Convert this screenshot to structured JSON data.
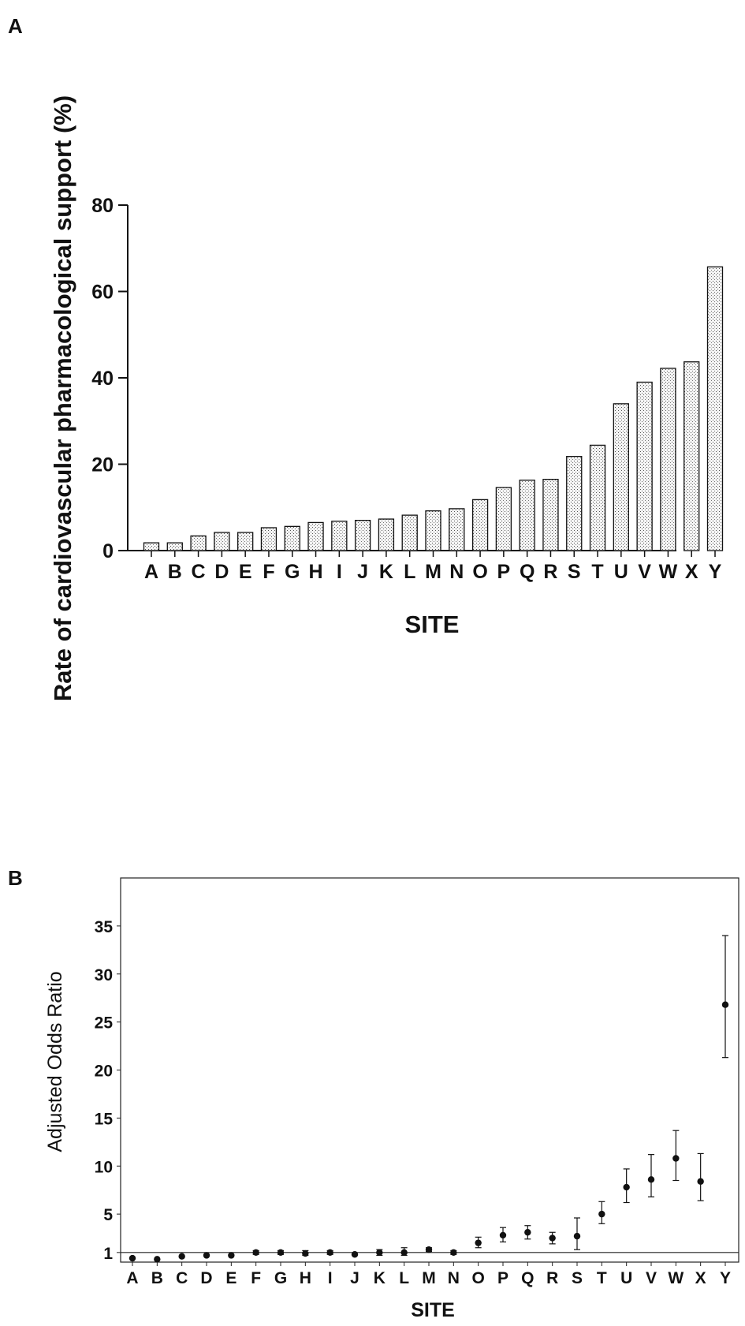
{
  "chart_data": [
    {
      "panel_label": "A",
      "type": "bar",
      "categories": [
        "A",
        "B",
        "C",
        "D",
        "E",
        "F",
        "G",
        "H",
        "I",
        "J",
        "K",
        "L",
        "M",
        "N",
        "O",
        "P",
        "Q",
        "R",
        "S",
        "T",
        "U",
        "V",
        "W",
        "X",
        "Y"
      ],
      "values": [
        1.8,
        1.8,
        3.4,
        4.2,
        4.2,
        5.3,
        5.6,
        6.5,
        6.8,
        7.0,
        7.3,
        8.2,
        9.2,
        9.7,
        11.8,
        14.6,
        16.3,
        16.5,
        21.8,
        24.4,
        34.0,
        39.0,
        42.2,
        43.7,
        65.7
      ],
      "xlabel": "SITE",
      "ylabel": "Rate of cardiovascular pharmacological support  (%)",
      "ylim": [
        0,
        80
      ],
      "yticks": [
        "0",
        "20",
        "40",
        "60",
        "80"
      ],
      "grid": false,
      "fill_pattern": "dotted"
    },
    {
      "panel_label": "B",
      "type": "scatter",
      "categories": [
        "A",
        "B",
        "C",
        "D",
        "E",
        "F",
        "G",
        "H",
        "I",
        "J",
        "K",
        "L",
        "M",
        "N",
        "O",
        "P",
        "Q",
        "R",
        "S",
        "T",
        "U",
        "V",
        "W",
        "X",
        "Y"
      ],
      "values": [
        0.4,
        0.3,
        0.6,
        0.7,
        0.7,
        1.0,
        1.0,
        0.9,
        1.0,
        0.8,
        1.0,
        1.0,
        1.3,
        1.0,
        2.0,
        2.8,
        3.1,
        2.5,
        2.7,
        5.0,
        7.8,
        8.6,
        10.8,
        8.4,
        26.8
      ],
      "error_low": [
        0.4,
        0.3,
        0.5,
        0.6,
        0.6,
        0.8,
        0.8,
        0.7,
        0.8,
        0.7,
        0.7,
        0.7,
        1.1,
        0.8,
        1.5,
        2.1,
        2.4,
        1.9,
        1.3,
        4.0,
        6.2,
        6.8,
        8.5,
        6.4,
        21.3
      ],
      "error_high": [
        0.4,
        0.3,
        0.7,
        0.8,
        0.8,
        1.2,
        1.2,
        1.2,
        1.2,
        0.9,
        1.3,
        1.5,
        1.5,
        1.2,
        2.6,
        3.6,
        3.8,
        3.1,
        4.6,
        6.3,
        9.7,
        11.2,
        13.7,
        11.3,
        34.0
      ],
      "reference_line": 1,
      "xlabel": "SITE",
      "ylabel": "Adjusted Odds Ratio",
      "ylim": [
        0,
        40
      ],
      "yticks": [
        "1",
        "5",
        "10",
        "15",
        "20",
        "25",
        "30",
        "35"
      ],
      "ytick_values": [
        1,
        5,
        10,
        15,
        20,
        25,
        30,
        35
      ],
      "grid": false
    }
  ]
}
